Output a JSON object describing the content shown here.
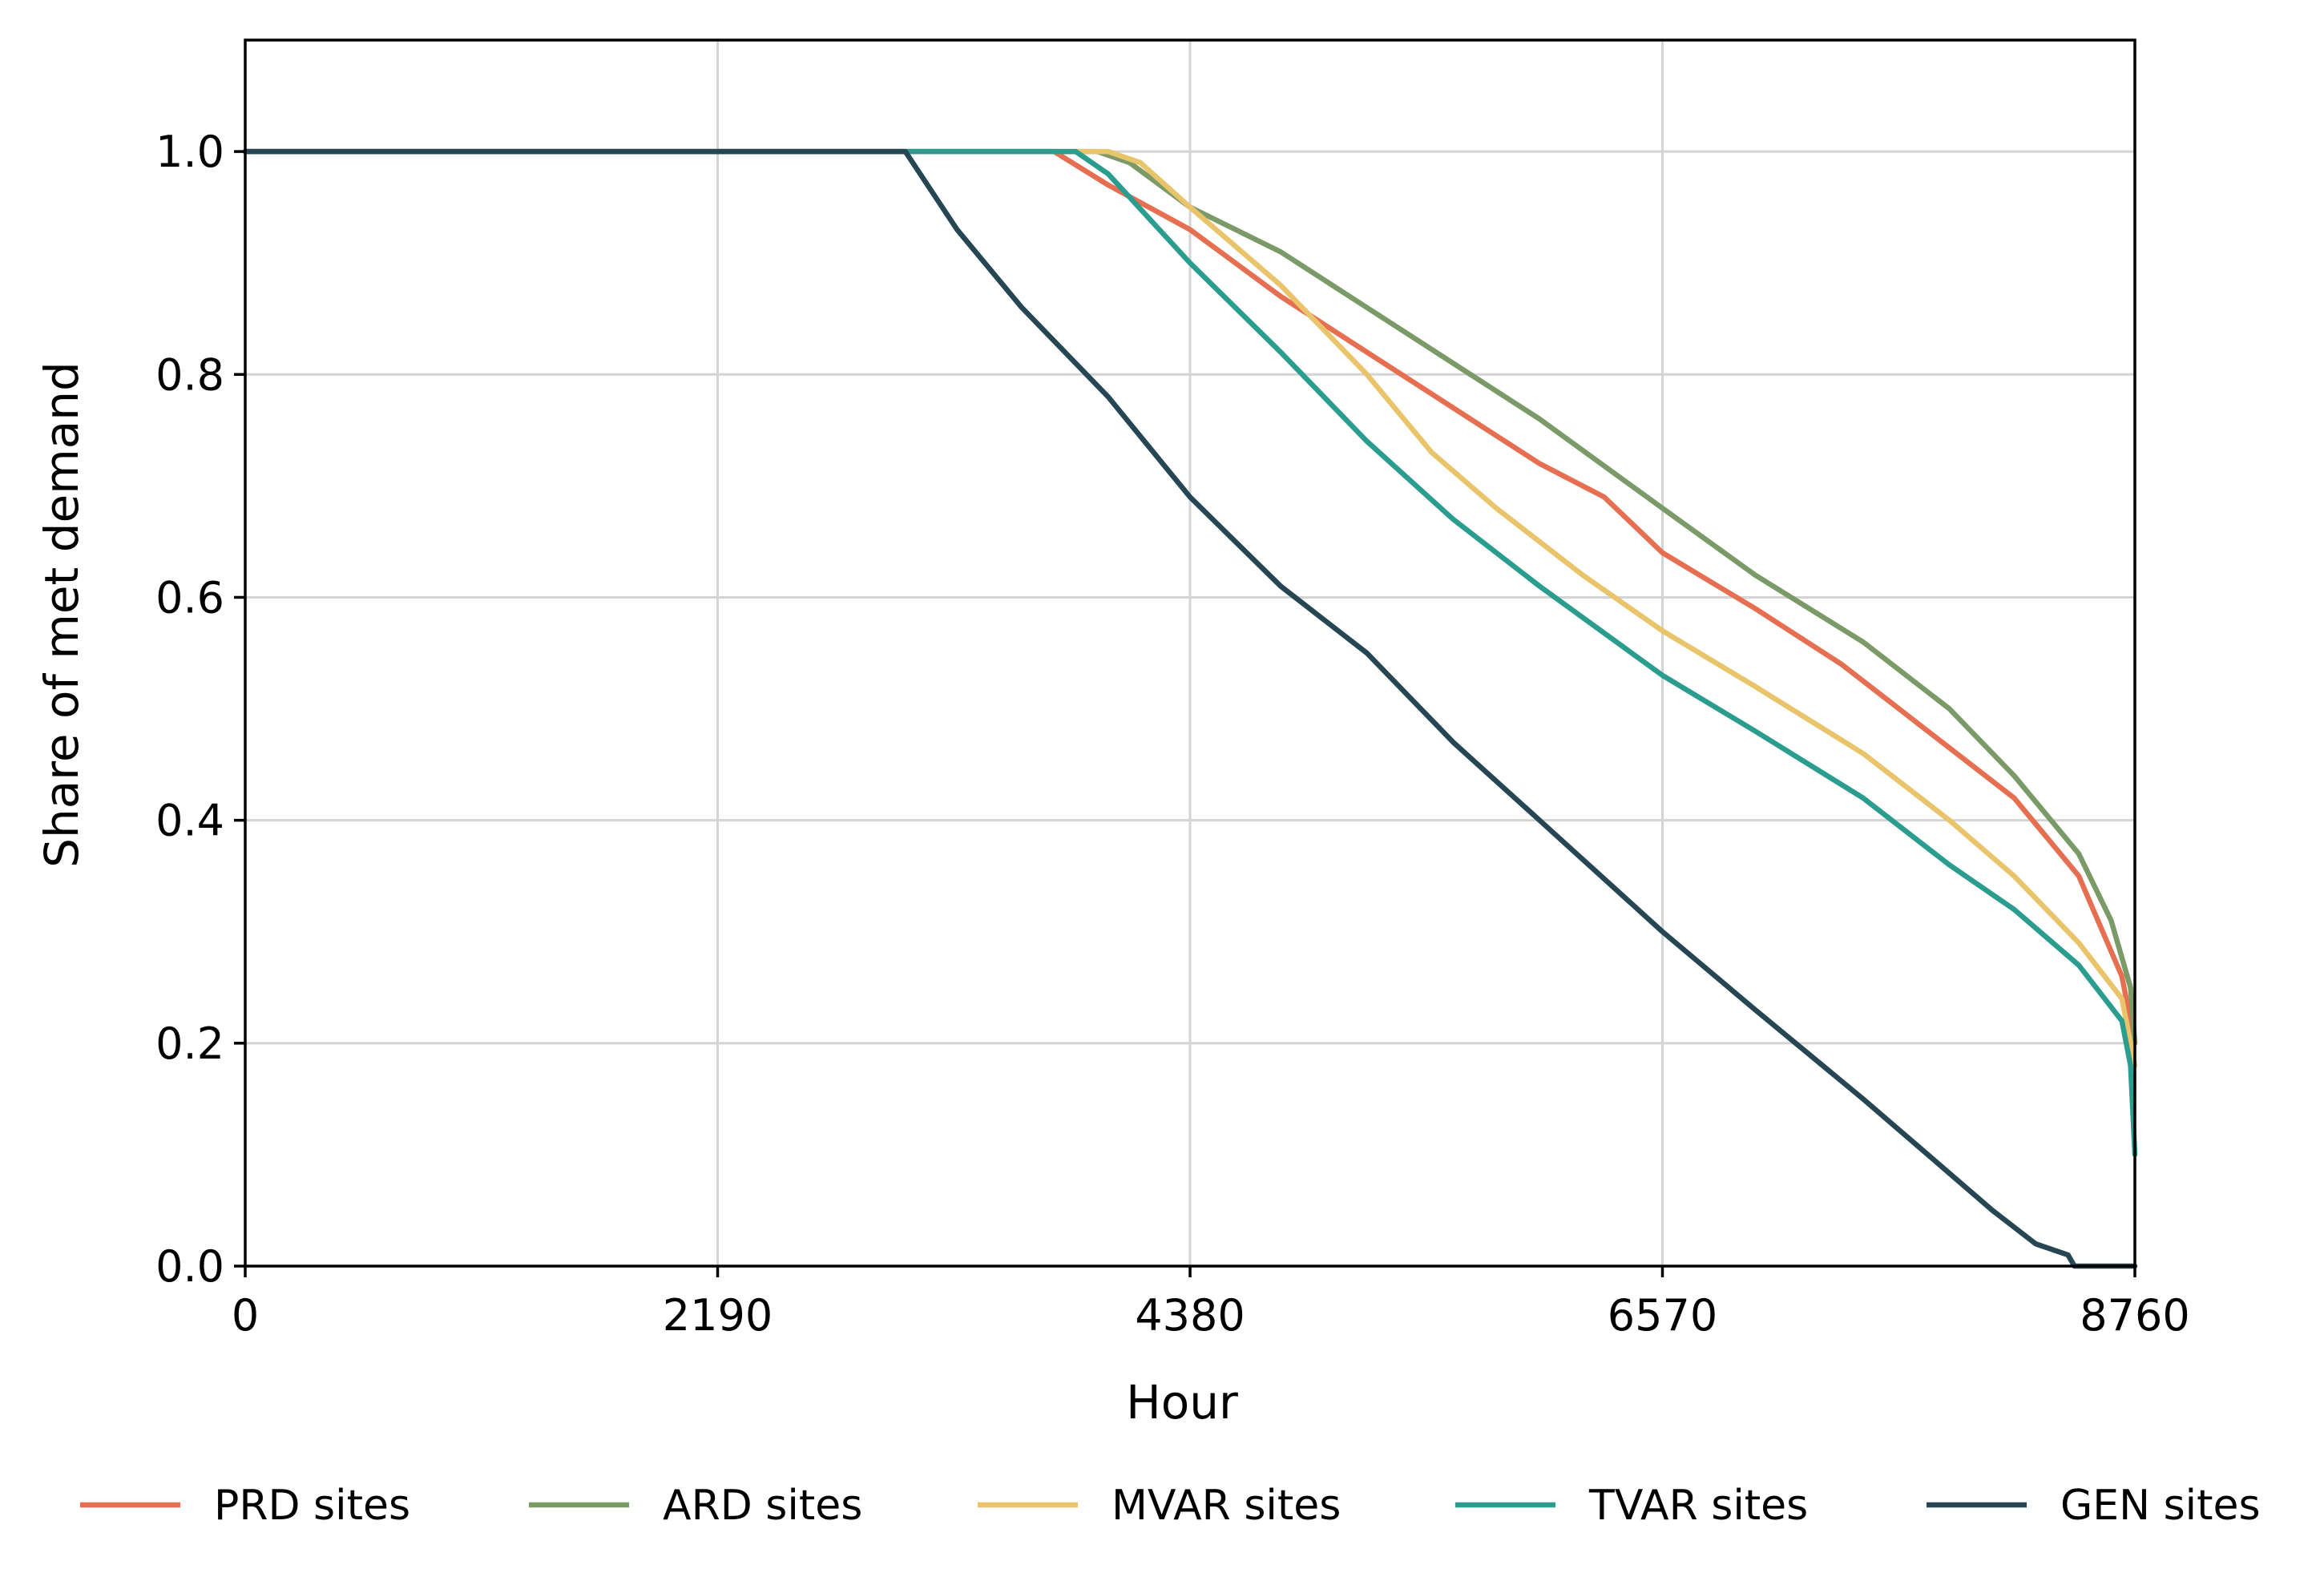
{
  "chart_data": {
    "type": "line",
    "title": "",
    "xlabel": "Hour",
    "ylabel": "Share of met demand",
    "xlim": [
      0,
      8760
    ],
    "ylim": [
      0,
      1.1
    ],
    "x_ticks": [
      0,
      2190,
      4380,
      6570,
      8760
    ],
    "x_tick_labels": [
      "0",
      "2190",
      "4380",
      "6570",
      "8760"
    ],
    "y_ticks": [
      0.0,
      0.2,
      0.4,
      0.6,
      0.8,
      1.0
    ],
    "y_tick_labels": [
      "0.0",
      "0.2",
      "0.4",
      "0.6",
      "0.8",
      "1.0"
    ],
    "grid": true,
    "legend_position": "bottom-center",
    "series": [
      {
        "name": "PRD sites",
        "color": "#e76f51",
        "points": [
          [
            0,
            1.0
          ],
          [
            3750,
            1.0
          ],
          [
            4000,
            0.97
          ],
          [
            4380,
            0.93
          ],
          [
            4800,
            0.87
          ],
          [
            5200,
            0.82
          ],
          [
            5600,
            0.77
          ],
          [
            6000,
            0.72
          ],
          [
            6300,
            0.69
          ],
          [
            6570,
            0.64
          ],
          [
            7000,
            0.59
          ],
          [
            7400,
            0.54
          ],
          [
            7800,
            0.48
          ],
          [
            8200,
            0.42
          ],
          [
            8500,
            0.35
          ],
          [
            8700,
            0.26
          ],
          [
            8760,
            0.2
          ]
        ]
      },
      {
        "name": "ARD sites",
        "color": "#7a9a68",
        "points": [
          [
            0,
            1.0
          ],
          [
            3950,
            1.0
          ],
          [
            4100,
            0.99
          ],
          [
            4380,
            0.95
          ],
          [
            4800,
            0.91
          ],
          [
            5200,
            0.86
          ],
          [
            5600,
            0.81
          ],
          [
            6000,
            0.76
          ],
          [
            6570,
            0.68
          ],
          [
            7000,
            0.62
          ],
          [
            7500,
            0.56
          ],
          [
            7900,
            0.5
          ],
          [
            8200,
            0.44
          ],
          [
            8500,
            0.37
          ],
          [
            8650,
            0.31
          ],
          [
            8740,
            0.25
          ],
          [
            8760,
            0.2
          ]
        ]
      },
      {
        "name": "MVAR sites",
        "color": "#e9c46a",
        "points": [
          [
            0,
            1.0
          ],
          [
            4000,
            1.0
          ],
          [
            4150,
            0.99
          ],
          [
            4380,
            0.95
          ],
          [
            4800,
            0.88
          ],
          [
            5200,
            0.8
          ],
          [
            5500,
            0.73
          ],
          [
            5800,
            0.68
          ],
          [
            6200,
            0.62
          ],
          [
            6570,
            0.57
          ],
          [
            7000,
            0.52
          ],
          [
            7500,
            0.46
          ],
          [
            7900,
            0.4
          ],
          [
            8200,
            0.35
          ],
          [
            8500,
            0.29
          ],
          [
            8700,
            0.24
          ],
          [
            8760,
            0.18
          ]
        ]
      },
      {
        "name": "TVAR sites",
        "color": "#2a9d8f",
        "points": [
          [
            0,
            1.0
          ],
          [
            3850,
            1.0
          ],
          [
            4000,
            0.98
          ],
          [
            4380,
            0.9
          ],
          [
            4800,
            0.82
          ],
          [
            5200,
            0.74
          ],
          [
            5600,
            0.67
          ],
          [
            6000,
            0.61
          ],
          [
            6570,
            0.53
          ],
          [
            7000,
            0.48
          ],
          [
            7500,
            0.42
          ],
          [
            7900,
            0.36
          ],
          [
            8200,
            0.32
          ],
          [
            8500,
            0.27
          ],
          [
            8700,
            0.22
          ],
          [
            8740,
            0.18
          ],
          [
            8760,
            0.1
          ]
        ]
      },
      {
        "name": "GEN sites",
        "color": "#264653",
        "points": [
          [
            0,
            1.0
          ],
          [
            3060,
            1.0
          ],
          [
            3300,
            0.93
          ],
          [
            3600,
            0.86
          ],
          [
            4000,
            0.78
          ],
          [
            4380,
            0.69
          ],
          [
            4800,
            0.61
          ],
          [
            5200,
            0.55
          ],
          [
            5600,
            0.47
          ],
          [
            6000,
            0.4
          ],
          [
            6570,
            0.3
          ],
          [
            7000,
            0.23
          ],
          [
            7500,
            0.15
          ],
          [
            7800,
            0.1
          ],
          [
            8100,
            0.05
          ],
          [
            8300,
            0.02
          ],
          [
            8450,
            0.01
          ],
          [
            8480,
            0.0
          ],
          [
            8760,
            0.0
          ]
        ]
      }
    ]
  }
}
